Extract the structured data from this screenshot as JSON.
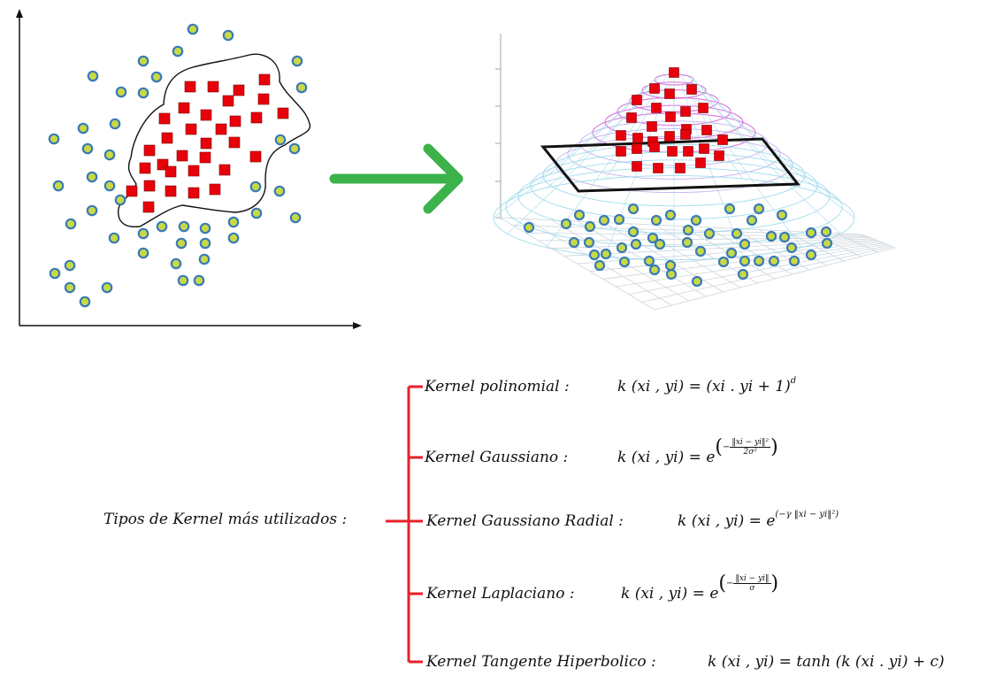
{
  "colors": {
    "circle_fill": "#c8d945",
    "circle_stroke": "#3a7ab8",
    "square_fill": "#e8000b",
    "arrow": "#3cb34a",
    "bracket": "#e8202a"
  },
  "diagram": {
    "left_panel": "scatter-2d",
    "right_panel": "surface-3d-with-plane"
  },
  "kernels": {
    "root_label": "Tipos de Kernel más utilizados :",
    "items": [
      {
        "name": "Kernel polinomial :",
        "lhs": "k (xi , yi)  =",
        "rhs": "(xi . yi  +  1)",
        "sup": "d"
      },
      {
        "name": "Kernel Gaussiano :",
        "lhs": "k (xi , yi)  =",
        "base": "e",
        "num": "‖xi − yi‖²",
        "den": "2σ²",
        "sign": "−"
      },
      {
        "name": "Kernel Gaussiano Radial :",
        "lhs": "k (xi , yi)  =",
        "base": "e",
        "exp": "(−γ ‖xi − yi‖²)"
      },
      {
        "name": "Kernel Laplaciano :",
        "lhs": "k (xi , yi)  =",
        "base": "e",
        "num": "‖xi − yi‖",
        "den": "σ",
        "sign": "−"
      },
      {
        "name": "Kernel Tangente Hiperbolico :",
        "lhs": "k (xi , yi)  =",
        "rhs": "tanh (k (xi . yi)  +  c)"
      }
    ]
  }
}
